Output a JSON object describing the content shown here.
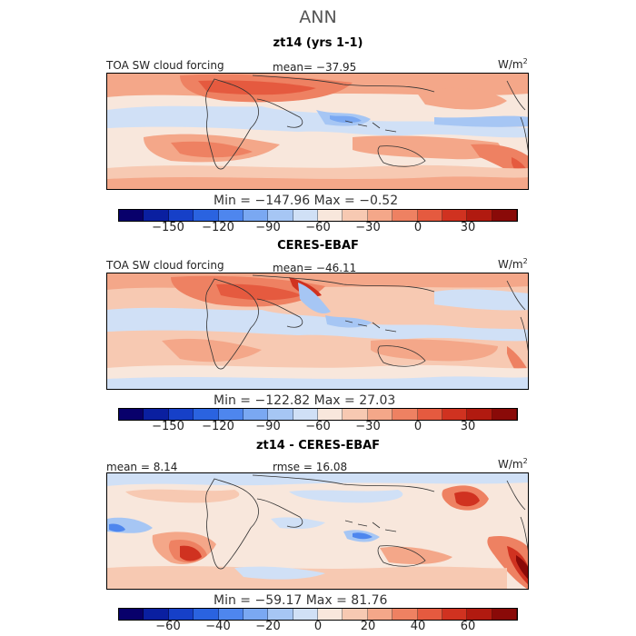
{
  "title": "ANN",
  "panels": [
    {
      "title": "zt14 (yrs 1-1)",
      "field_label": "TOA SW cloud forcing",
      "stat_left": "",
      "stat_center": "mean= −37.95",
      "units": "W/m",
      "units_sup": "2",
      "range_text": "Min = −147.96 Max =  −0.52",
      "ticks": [
        "−150",
        "−120",
        "−90",
        "−60",
        "−30",
        "0",
        "30"
      ]
    },
    {
      "title": "CERES-EBAF",
      "field_label": "TOA SW cloud forcing",
      "stat_left": "",
      "stat_center": "mean= −46.11",
      "units": "W/m",
      "units_sup": "2",
      "range_text": "Min = −122.82 Max =  27.03",
      "ticks": [
        "−150",
        "−120",
        "−90",
        "−60",
        "−30",
        "0",
        "30"
      ]
    },
    {
      "title": "zt14 - CERES-EBAF",
      "field_label": "",
      "stat_left": "mean =   8.14",
      "stat_center": "rmse =  16.08",
      "units": "W/m",
      "units_sup": "2",
      "range_text": "Min = −59.17 Max =  81.76",
      "ticks": [
        "−60",
        "−40",
        "−20",
        "0",
        "20",
        "40",
        "60"
      ]
    }
  ],
  "colorbar_colors": [
    "#08006b",
    "#0a1fa0",
    "#1640c8",
    "#2a63e0",
    "#4e86ee",
    "#7aa8f2",
    "#a6c6f4",
    "#d0e0f6",
    "#f8e7dc",
    "#f7c9b2",
    "#f4a789",
    "#ee8162",
    "#e55a3f",
    "#d03220",
    "#b11a10",
    "#8a0a08"
  ],
  "maps": [
    {
      "name": "model"
    },
    {
      "name": "obs"
    },
    {
      "name": "diff"
    }
  ]
}
